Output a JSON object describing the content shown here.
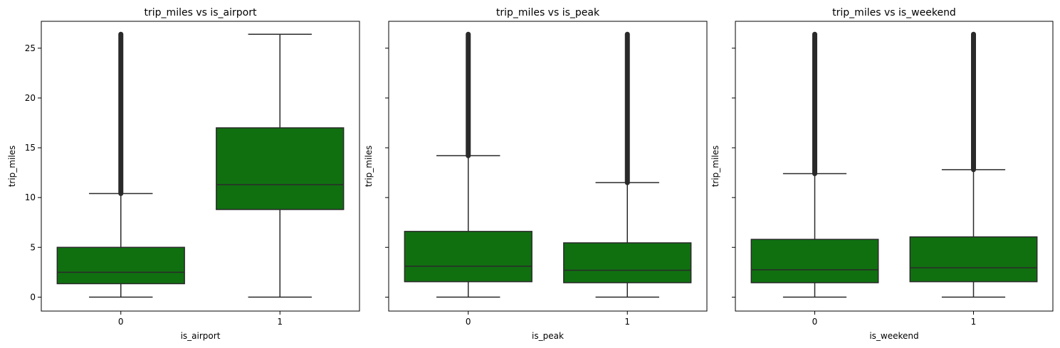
{
  "figure": {
    "box_color": "#107010",
    "line_color": "#2a2a2a",
    "outlier_color": "#2a2a2a"
  },
  "chart_data": [
    {
      "type": "box",
      "title": "trip_miles vs is_airport",
      "xlabel": "is_airport",
      "ylabel": "trip_miles",
      "ylim": [
        -1.4,
        27.7
      ],
      "yticks": [
        0,
        5,
        10,
        15,
        20,
        25
      ],
      "show_y_ticklabels": true,
      "categories": [
        "0",
        "1"
      ],
      "boxes": [
        {
          "whisker_low": 0,
          "q1": 1.35,
          "median": 2.5,
          "q3": 5.0,
          "whisker_high": 10.4,
          "outliers_from": 10.4,
          "outliers_to": 26.4
        },
        {
          "whisker_low": 0,
          "q1": 8.8,
          "median": 11.3,
          "q3": 17.0,
          "whisker_high": 26.4,
          "outliers_from": null,
          "outliers_to": null
        }
      ]
    },
    {
      "type": "box",
      "title": "trip_miles vs is_peak",
      "xlabel": "is_peak",
      "ylabel": "trip_miles",
      "ylim": [
        -1.4,
        27.7
      ],
      "yticks": [
        0,
        5,
        10,
        15,
        20,
        25
      ],
      "show_y_ticklabels": false,
      "categories": [
        "0",
        "1"
      ],
      "boxes": [
        {
          "whisker_low": 0,
          "q1": 1.55,
          "median": 3.1,
          "q3": 6.6,
          "whisker_high": 14.2,
          "outliers_from": 14.2,
          "outliers_to": 26.4
        },
        {
          "whisker_low": 0,
          "q1": 1.45,
          "median": 2.7,
          "q3": 5.45,
          "whisker_high": 11.5,
          "outliers_from": 11.5,
          "outliers_to": 26.4
        }
      ]
    },
    {
      "type": "box",
      "title": "trip_miles vs is_weekend",
      "xlabel": "is_weekend",
      "ylabel": "trip_miles",
      "ylim": [
        -1.4,
        27.7
      ],
      "yticks": [
        0,
        5,
        10,
        15,
        20,
        25
      ],
      "show_y_ticklabels": false,
      "categories": [
        "0",
        "1"
      ],
      "boxes": [
        {
          "whisker_low": 0,
          "q1": 1.45,
          "median": 2.75,
          "q3": 5.8,
          "whisker_high": 12.4,
          "outliers_from": 12.4,
          "outliers_to": 26.4
        },
        {
          "whisker_low": 0,
          "q1": 1.55,
          "median": 2.95,
          "q3": 6.05,
          "whisker_high": 12.8,
          "outliers_from": 12.8,
          "outliers_to": 26.4
        }
      ]
    }
  ]
}
